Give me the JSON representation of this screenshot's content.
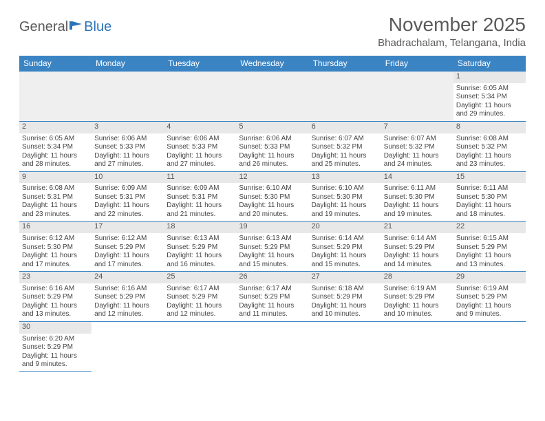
{
  "logo": {
    "part1": "General",
    "part2": "Blue"
  },
  "header": {
    "title": "November 2025",
    "location": "Bhadrachalam, Telangana, India"
  },
  "colors": {
    "header_bg": "#3b84c4",
    "header_text": "#ffffff",
    "daynum_bg": "#e8e8e8",
    "blank_bg": "#efefef",
    "border": "#3b84c4",
    "title_color": "#5a5a5a",
    "body_text": "#444444"
  },
  "fonts": {
    "title_size": 28,
    "location_size": 15,
    "dayheader_size": 12,
    "cell_size": 10
  },
  "dayNames": [
    "Sunday",
    "Monday",
    "Tuesday",
    "Wednesday",
    "Thursday",
    "Friday",
    "Saturday"
  ],
  "grid": {
    "columns": 7,
    "leading_blanks": 6,
    "trailing_blanks": 6
  },
  "days": [
    {
      "n": "1",
      "sr": "Sunrise: 6:05 AM",
      "ss": "Sunset: 5:34 PM",
      "d1": "Daylight: 11 hours",
      "d2": "and 29 minutes."
    },
    {
      "n": "2",
      "sr": "Sunrise: 6:05 AM",
      "ss": "Sunset: 5:34 PM",
      "d1": "Daylight: 11 hours",
      "d2": "and 28 minutes."
    },
    {
      "n": "3",
      "sr": "Sunrise: 6:06 AM",
      "ss": "Sunset: 5:33 PM",
      "d1": "Daylight: 11 hours",
      "d2": "and 27 minutes."
    },
    {
      "n": "4",
      "sr": "Sunrise: 6:06 AM",
      "ss": "Sunset: 5:33 PM",
      "d1": "Daylight: 11 hours",
      "d2": "and 27 minutes."
    },
    {
      "n": "5",
      "sr": "Sunrise: 6:06 AM",
      "ss": "Sunset: 5:33 PM",
      "d1": "Daylight: 11 hours",
      "d2": "and 26 minutes."
    },
    {
      "n": "6",
      "sr": "Sunrise: 6:07 AM",
      "ss": "Sunset: 5:32 PM",
      "d1": "Daylight: 11 hours",
      "d2": "and 25 minutes."
    },
    {
      "n": "7",
      "sr": "Sunrise: 6:07 AM",
      "ss": "Sunset: 5:32 PM",
      "d1": "Daylight: 11 hours",
      "d2": "and 24 minutes."
    },
    {
      "n": "8",
      "sr": "Sunrise: 6:08 AM",
      "ss": "Sunset: 5:32 PM",
      "d1": "Daylight: 11 hours",
      "d2": "and 23 minutes."
    },
    {
      "n": "9",
      "sr": "Sunrise: 6:08 AM",
      "ss": "Sunset: 5:31 PM",
      "d1": "Daylight: 11 hours",
      "d2": "and 23 minutes."
    },
    {
      "n": "10",
      "sr": "Sunrise: 6:09 AM",
      "ss": "Sunset: 5:31 PM",
      "d1": "Daylight: 11 hours",
      "d2": "and 22 minutes."
    },
    {
      "n": "11",
      "sr": "Sunrise: 6:09 AM",
      "ss": "Sunset: 5:31 PM",
      "d1": "Daylight: 11 hours",
      "d2": "and 21 minutes."
    },
    {
      "n": "12",
      "sr": "Sunrise: 6:10 AM",
      "ss": "Sunset: 5:30 PM",
      "d1": "Daylight: 11 hours",
      "d2": "and 20 minutes."
    },
    {
      "n": "13",
      "sr": "Sunrise: 6:10 AM",
      "ss": "Sunset: 5:30 PM",
      "d1": "Daylight: 11 hours",
      "d2": "and 19 minutes."
    },
    {
      "n": "14",
      "sr": "Sunrise: 6:11 AM",
      "ss": "Sunset: 5:30 PM",
      "d1": "Daylight: 11 hours",
      "d2": "and 19 minutes."
    },
    {
      "n": "15",
      "sr": "Sunrise: 6:11 AM",
      "ss": "Sunset: 5:30 PM",
      "d1": "Daylight: 11 hours",
      "d2": "and 18 minutes."
    },
    {
      "n": "16",
      "sr": "Sunrise: 6:12 AM",
      "ss": "Sunset: 5:30 PM",
      "d1": "Daylight: 11 hours",
      "d2": "and 17 minutes."
    },
    {
      "n": "17",
      "sr": "Sunrise: 6:12 AM",
      "ss": "Sunset: 5:29 PM",
      "d1": "Daylight: 11 hours",
      "d2": "and 17 minutes."
    },
    {
      "n": "18",
      "sr": "Sunrise: 6:13 AM",
      "ss": "Sunset: 5:29 PM",
      "d1": "Daylight: 11 hours",
      "d2": "and 16 minutes."
    },
    {
      "n": "19",
      "sr": "Sunrise: 6:13 AM",
      "ss": "Sunset: 5:29 PM",
      "d1": "Daylight: 11 hours",
      "d2": "and 15 minutes."
    },
    {
      "n": "20",
      "sr": "Sunrise: 6:14 AM",
      "ss": "Sunset: 5:29 PM",
      "d1": "Daylight: 11 hours",
      "d2": "and 15 minutes."
    },
    {
      "n": "21",
      "sr": "Sunrise: 6:14 AM",
      "ss": "Sunset: 5:29 PM",
      "d1": "Daylight: 11 hours",
      "d2": "and 14 minutes."
    },
    {
      "n": "22",
      "sr": "Sunrise: 6:15 AM",
      "ss": "Sunset: 5:29 PM",
      "d1": "Daylight: 11 hours",
      "d2": "and 13 minutes."
    },
    {
      "n": "23",
      "sr": "Sunrise: 6:16 AM",
      "ss": "Sunset: 5:29 PM",
      "d1": "Daylight: 11 hours",
      "d2": "and 13 minutes."
    },
    {
      "n": "24",
      "sr": "Sunrise: 6:16 AM",
      "ss": "Sunset: 5:29 PM",
      "d1": "Daylight: 11 hours",
      "d2": "and 12 minutes."
    },
    {
      "n": "25",
      "sr": "Sunrise: 6:17 AM",
      "ss": "Sunset: 5:29 PM",
      "d1": "Daylight: 11 hours",
      "d2": "and 12 minutes."
    },
    {
      "n": "26",
      "sr": "Sunrise: 6:17 AM",
      "ss": "Sunset: 5:29 PM",
      "d1": "Daylight: 11 hours",
      "d2": "and 11 minutes."
    },
    {
      "n": "27",
      "sr": "Sunrise: 6:18 AM",
      "ss": "Sunset: 5:29 PM",
      "d1": "Daylight: 11 hours",
      "d2": "and 10 minutes."
    },
    {
      "n": "28",
      "sr": "Sunrise: 6:19 AM",
      "ss": "Sunset: 5:29 PM",
      "d1": "Daylight: 11 hours",
      "d2": "and 10 minutes."
    },
    {
      "n": "29",
      "sr": "Sunrise: 6:19 AM",
      "ss": "Sunset: 5:29 PM",
      "d1": "Daylight: 11 hours",
      "d2": "and 9 minutes."
    },
    {
      "n": "30",
      "sr": "Sunrise: 6:20 AM",
      "ss": "Sunset: 5:29 PM",
      "d1": "Daylight: 11 hours",
      "d2": "and 9 minutes."
    }
  ]
}
